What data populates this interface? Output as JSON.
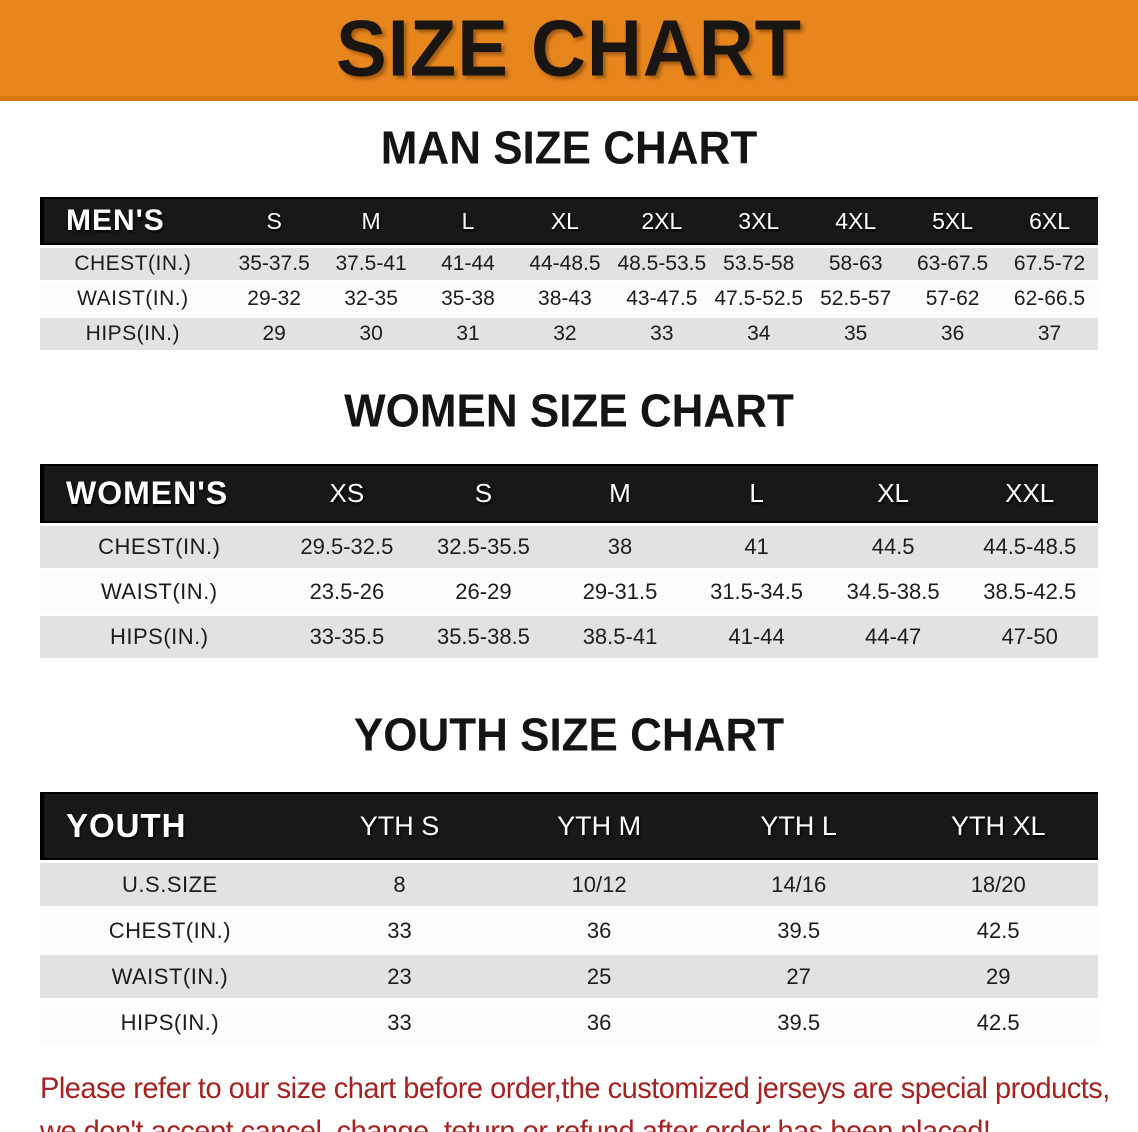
{
  "banner": {
    "title": "SIZE CHART"
  },
  "colors": {
    "banner_bg": "#E8861E",
    "banner_border": "#D9760D",
    "table_header_bg": "#181818",
    "table_header_text": "#ffffff",
    "row_gray": "#e2e2e2",
    "row_white": "#fcfcfc",
    "heading_text": "#141414",
    "disclaimer_red": "#A32222"
  },
  "sections": [
    {
      "id": "men",
      "heading": "MAN SIZE CHART",
      "table": {
        "label": "MEN'S",
        "columns": [
          "S",
          "M",
          "L",
          "XL",
          "2XL",
          "3XL",
          "4XL",
          "5XL",
          "6XL"
        ],
        "rows": [
          {
            "label": "CHEST(IN.)",
            "values": [
              "35-37.5",
              "37.5-41",
              "41-44",
              "44-48.5",
              "48.5-53.5",
              "53.5-58",
              "58-63",
              "63-67.5",
              "67.5-72"
            ]
          },
          {
            "label": "WAIST(IN.)",
            "values": [
              "29-32",
              "32-35",
              "35-38",
              "38-43",
              "43-47.5",
              "47.5-52.5",
              "52.5-57",
              "57-62",
              "62-66.5"
            ]
          },
          {
            "label": "HIPS(IN.)",
            "values": [
              "29",
              "30",
              "31",
              "32",
              "33",
              "34",
              "35",
              "36",
              "37"
            ]
          }
        ]
      }
    },
    {
      "id": "women",
      "heading": "WOMEN SIZE CHART",
      "table": {
        "label": "WOMEN'S",
        "columns": [
          "XS",
          "S",
          "M",
          "L",
          "XL",
          "XXL"
        ],
        "rows": [
          {
            "label": "CHEST(IN.)",
            "values": [
              "29.5-32.5",
              "32.5-35.5",
              "38",
              "41",
              "44.5",
              "44.5-48.5"
            ]
          },
          {
            "label": "WAIST(IN.)",
            "values": [
              "23.5-26",
              "26-29",
              "29-31.5",
              "31.5-34.5",
              "34.5-38.5",
              "38.5-42.5"
            ]
          },
          {
            "label": "HIPS(IN.)",
            "values": [
              "33-35.5",
              "35.5-38.5",
              "38.5-41",
              "41-44",
              "44-47",
              "47-50"
            ]
          }
        ]
      }
    },
    {
      "id": "youth",
      "heading": "YOUTH SIZE CHART",
      "table": {
        "label": "YOUTH",
        "columns": [
          "YTH S",
          "YTH M",
          "YTH L",
          "YTH XL"
        ],
        "rows": [
          {
            "label": "U.S.SIZE",
            "values": [
              "8",
              "10/12",
              "14/16",
              "18/20"
            ]
          },
          {
            "label": "CHEST(IN.)",
            "values": [
              "33",
              "36",
              "39.5",
              "42.5"
            ]
          },
          {
            "label": "WAIST(IN.)",
            "values": [
              "23",
              "25",
              "27",
              "29"
            ]
          },
          {
            "label": "HIPS(IN.)",
            "values": [
              "33",
              "36",
              "39.5",
              "42.5"
            ]
          }
        ]
      }
    }
  ],
  "disclaimer": {
    "line1": "Please refer to our size chart before order,the customized jerseys are special products,",
    "line2": "we don't accept cancel, change, teturn or refund after order has been placed!"
  }
}
